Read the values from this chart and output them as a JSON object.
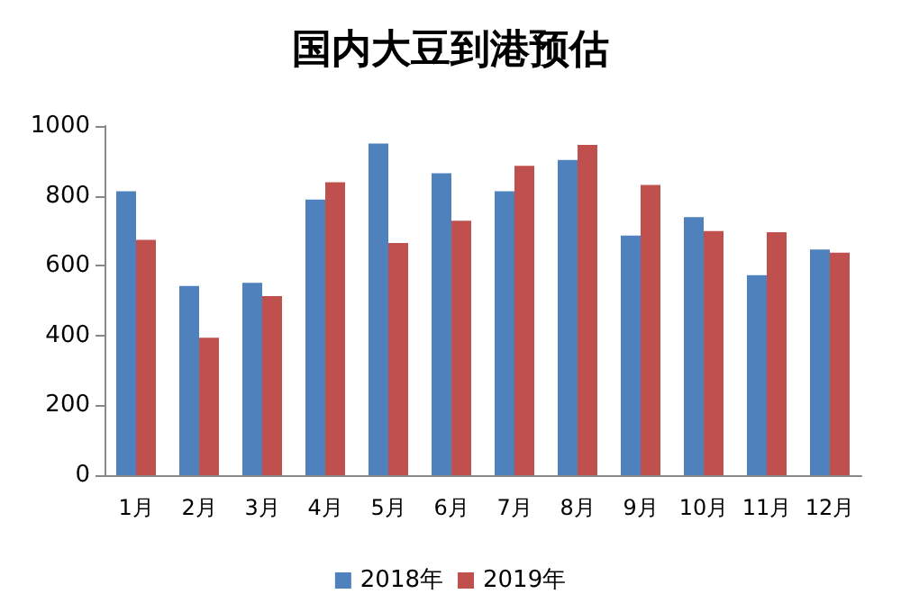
{
  "chart_data": {
    "type": "bar",
    "title": "国内大豆到港预估",
    "categories": [
      "1月",
      "2月",
      "3月",
      "4月",
      "5月",
      "6月",
      "7月",
      "8月",
      "9月",
      "10月",
      "11月",
      "12月"
    ],
    "series": [
      {
        "name": "2018年",
        "color": "#4f81bd",
        "values": [
          813,
          542,
          551,
          789,
          950,
          865,
          813,
          903,
          686,
          739,
          573,
          646
        ]
      },
      {
        "name": "2019年",
        "color": "#c0504d",
        "values": [
          674,
          394,
          513,
          839,
          665,
          729,
          886,
          946,
          831,
          699,
          696,
          637
        ]
      }
    ],
    "ylim": [
      0,
      1000
    ],
    "yticks": [
      0,
      200,
      400,
      600,
      800,
      1000
    ],
    "grid": false,
    "legend": "bottom"
  }
}
